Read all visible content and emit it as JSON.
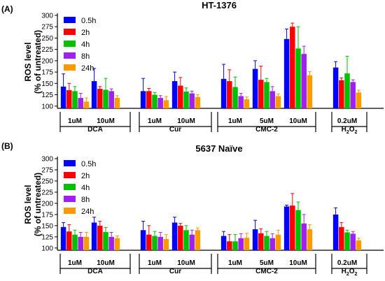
{
  "chart_data": [
    {
      "panel_label": "(A)",
      "title": "HT-1376",
      "type": "bar",
      "ylabel_line1": "ROS level",
      "ylabel_line2": "(% of untreated)",
      "ylim": [
        95,
        300
      ],
      "yticks": [
        100,
        125,
        150,
        175,
        200,
        225,
        250,
        275,
        300
      ],
      "grid": false,
      "legend_position": "top-left",
      "categories": [
        "1uM",
        "10uM",
        "1uM",
        "10uM",
        "1uM",
        "5uM",
        "10uM",
        "0.2uM"
      ],
      "groups": [
        {
          "label": "DCA",
          "categories": [
            "1uM",
            "10uM"
          ]
        },
        {
          "label": "Cur",
          "categories": [
            "1uM",
            "10uM"
          ]
        },
        {
          "label": "CMC-2",
          "categories": [
            "1uM",
            "5uM",
            "10uM"
          ]
        },
        {
          "label": "H",
          "label_sub": "2",
          "label_mid": "O",
          "label_sub2": "2",
          "categories": [
            "0.2uM"
          ]
        }
      ],
      "series": [
        {
          "name": "0.5h",
          "color": "#0000ff",
          "values": [
            143,
            155,
            133,
            155,
            160,
            182,
            248,
            185
          ],
          "errors": [
            28,
            28,
            28,
            20,
            32,
            18,
            22,
            13
          ]
        },
        {
          "name": "2h",
          "color": "#ff0000",
          "values": [
            135,
            138,
            133,
            145,
            155,
            158,
            275,
            157
          ],
          "errors": [
            15,
            5,
            6,
            18,
            25,
            30,
            8,
            5
          ]
        },
        {
          "name": "4h",
          "color": "#00c000",
          "values": [
            133,
            136,
            125,
            132,
            142,
            153,
            227,
            172
          ],
          "errors": [
            10,
            25,
            5,
            8,
            22,
            8,
            48,
            38
          ]
        },
        {
          "name": "8h",
          "color": "#a020f0",
          "values": [
            118,
            133,
            118,
            128,
            122,
            133,
            215,
            153
          ],
          "errors": [
            10,
            5,
            5,
            5,
            6,
            10,
            17,
            5
          ]
        },
        {
          "name": "24h",
          "color": "#ff9900",
          "values": [
            110,
            118,
            113,
            120,
            115,
            122,
            168,
            130
          ],
          "errors": [
            8,
            5,
            8,
            5,
            5,
            5,
            8,
            5
          ]
        }
      ]
    },
    {
      "panel_label": "(B)",
      "title": "5637 Naïve",
      "type": "bar",
      "ylabel_line1": "ROS level",
      "ylabel_line2": "(% of untreated)",
      "ylim": [
        95,
        300
      ],
      "yticks": [
        100,
        125,
        150,
        175,
        200,
        225,
        250,
        275,
        300
      ],
      "grid": false,
      "legend_position": "top-left",
      "categories": [
        "1uM",
        "10uM",
        "1uM",
        "10uM",
        "1uM",
        "5uM",
        "10uM",
        "0.2uM"
      ],
      "groups": [
        {
          "label": "DCA",
          "categories": [
            "1uM",
            "10uM"
          ]
        },
        {
          "label": "Cur",
          "categories": [
            "1uM",
            "10uM"
          ]
        },
        {
          "label": "CMC-2",
          "categories": [
            "1uM",
            "5uM",
            "10uM"
          ]
        },
        {
          "label": "H",
          "label_sub": "2",
          "label_mid": "O",
          "label_sub2": "2",
          "categories": [
            "0.2uM"
          ]
        }
      ],
      "series": [
        {
          "name": "0.5h",
          "color": "#0000ff",
          "values": [
            147,
            157,
            140,
            157,
            127,
            142,
            193,
            175
          ],
          "errors": [
            10,
            12,
            20,
            12,
            10,
            20,
            3,
            15
          ]
        },
        {
          "name": "2h",
          "color": "#ff0000",
          "values": [
            137,
            150,
            130,
            150,
            115,
            133,
            195,
            147
          ],
          "errors": [
            15,
            10,
            20,
            5,
            15,
            10,
            27,
            10
          ]
        },
        {
          "name": "4h",
          "color": "#00c000",
          "values": [
            130,
            136,
            127,
            140,
            115,
            127,
            185,
            135
          ],
          "errors": [
            10,
            10,
            10,
            10,
            15,
            10,
            18,
            5
          ]
        },
        {
          "name": "8h",
          "color": "#a020f0",
          "values": [
            125,
            125,
            125,
            130,
            122,
            122,
            155,
            132
          ],
          "errors": [
            10,
            10,
            10,
            10,
            10,
            10,
            20,
            5
          ]
        },
        {
          "name": "24h",
          "color": "#ff9900",
          "values": [
            125,
            122,
            120,
            140,
            123,
            130,
            142,
            117
          ],
          "errors": [
            10,
            5,
            10,
            5,
            10,
            10,
            10,
            5
          ]
        }
      ]
    }
  ]
}
